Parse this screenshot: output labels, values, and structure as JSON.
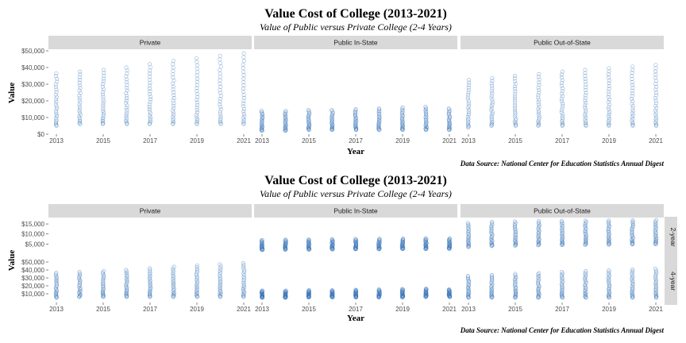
{
  "chart_data": [
    {
      "type": "scatter",
      "title": "Value Cost of College (2013-2021)",
      "subtitle": "Value of Public versus Private College (2-4 Years)",
      "xlabel": "Year",
      "ylabel": "Value",
      "caption": "Data Source: National Center for Education Statistics Annual Digest",
      "x_ticks": [
        "2013",
        "2015",
        "2017",
        "2019",
        "2021"
      ],
      "x_range": [
        2013,
        2021
      ],
      "panels": [
        {
          "label": "Private",
          "y_ticks": [
            "$50,000",
            "$40,000",
            "$30,000",
            "$20,000",
            "$10,000",
            "$0"
          ],
          "ylim": [
            0,
            50000
          ],
          "series": [
            {
              "x": [
                2013,
                2014,
                2015,
                2016,
                2017,
                2018,
                2019,
                2020,
                2021
              ],
              "low": [
                5000,
                6000,
                6000,
                6000,
                6000,
                6000,
                6000,
                6000,
                6000
              ],
              "high": [
                36500,
                37500,
                38500,
                40000,
                42000,
                44000,
                45500,
                47000,
                48500
              ]
            }
          ]
        },
        {
          "label": "Public In-State",
          "y_ticks": [],
          "ylim": [
            0,
            50000
          ],
          "series": [
            {
              "x": [
                2013,
                2014,
                2015,
                2016,
                2017,
                2018,
                2019,
                2020,
                2021
              ],
              "low": [
                2000,
                2000,
                2500,
                2500,
                2500,
                2500,
                2500,
                2500,
                2500
              ],
              "high": [
                14000,
                14000,
                14500,
                14500,
                15000,
                15500,
                16000,
                16500,
                15500
              ]
            }
          ]
        },
        {
          "label": "Public Out-of-State",
          "y_ticks": [],
          "ylim": [
            0,
            50000
          ],
          "series": [
            {
              "x": [
                2013,
                2014,
                2015,
                2016,
                2017,
                2018,
                2019,
                2020,
                2021
              ],
              "low": [
                4000,
                5000,
                5000,
                5000,
                5000,
                5000,
                5000,
                5000,
                5000
              ],
              "high": [
                32500,
                33500,
                35000,
                36000,
                37500,
                38500,
                39500,
                40500,
                41500
              ]
            }
          ]
        }
      ]
    },
    {
      "type": "scatter",
      "title": "Value Cost of College (2013-2021)",
      "subtitle": "Value of Public versus Private College (2-4 Years)",
      "xlabel": "Year",
      "ylabel": "Value",
      "caption": "Data Source: National Center for Education Statistics Annual Digest",
      "x_ticks": [
        "2013",
        "2015",
        "2017",
        "2019",
        "2021"
      ],
      "x_range": [
        2013,
        2021
      ],
      "columns": [
        "Private",
        "Public In-State",
        "Public Out-of-State"
      ],
      "rows": [
        {
          "label": "2-year",
          "y_ticks": [
            "$15,000",
            "$10,000",
            "$5,000"
          ],
          "ylim": [
            0,
            17000
          ],
          "panels": [
            {
              "column": "Private",
              "x": [],
              "low": [],
              "high": []
            },
            {
              "column": "Public In-State",
              "x": [
                2013,
                2014,
                2015,
                2016,
                2017,
                2018,
                2019,
                2020,
                2021
              ],
              "low": [
                2000,
                2200,
                2200,
                2300,
                2400,
                2400,
                2500,
                2500,
                2600
              ],
              "high": [
                7000,
                7200,
                7300,
                7400,
                7500,
                7600,
                7700,
                7800,
                7800
              ]
            },
            {
              "column": "Public Out-of-State",
              "x": [
                2013,
                2014,
                2015,
                2016,
                2017,
                2018,
                2019,
                2020,
                2021
              ],
              "low": [
                3500,
                4000,
                4200,
                4400,
                4500,
                4600,
                4700,
                4800,
                4900
              ],
              "high": [
                15500,
                16000,
                16200,
                16400,
                16500,
                16600,
                16700,
                16800,
                16900
              ]
            }
          ]
        },
        {
          "label": "4-year",
          "y_ticks": [
            "$50,000",
            "$40,000",
            "$30,000",
            "$20,000",
            "$10,000"
          ],
          "ylim": [
            0,
            52000
          ],
          "panels": [
            {
              "column": "Private",
              "x": [
                2013,
                2014,
                2015,
                2016,
                2017,
                2018,
                2019,
                2020,
                2021
              ],
              "low": [
                5000,
                6000,
                6000,
                6000,
                6000,
                6000,
                6000,
                6000,
                6000
              ],
              "high": [
                36500,
                37500,
                38500,
                40000,
                42000,
                44000,
                45500,
                47000,
                48500
              ]
            },
            {
              "column": "Public In-State",
              "x": [
                2013,
                2014,
                2015,
                2016,
                2017,
                2018,
                2019,
                2020,
                2021
              ],
              "low": [
                5000,
                5000,
                5500,
                5500,
                5500,
                5500,
                5500,
                6000,
                6000
              ],
              "high": [
                14000,
                14000,
                14500,
                14500,
                15000,
                15500,
                16000,
                16500,
                15500
              ]
            },
            {
              "column": "Public Out-of-State",
              "x": [
                2013,
                2014,
                2015,
                2016,
                2017,
                2018,
                2019,
                2020,
                2021
              ],
              "low": [
                5000,
                5000,
                5000,
                5000,
                5000,
                5000,
                5000,
                5000,
                5000
              ],
              "high": [
                32500,
                33500,
                35000,
                36000,
                37500,
                38500,
                39500,
                40500,
                41500
              ]
            }
          ]
        }
      ]
    }
  ],
  "colors": {
    "point_stroke": "#2E6DB4",
    "strip_fill": "#D9D9D9",
    "strip_text": "#1A1A1A",
    "axis_text": "#4D4D4D",
    "title_text": "#000000"
  }
}
